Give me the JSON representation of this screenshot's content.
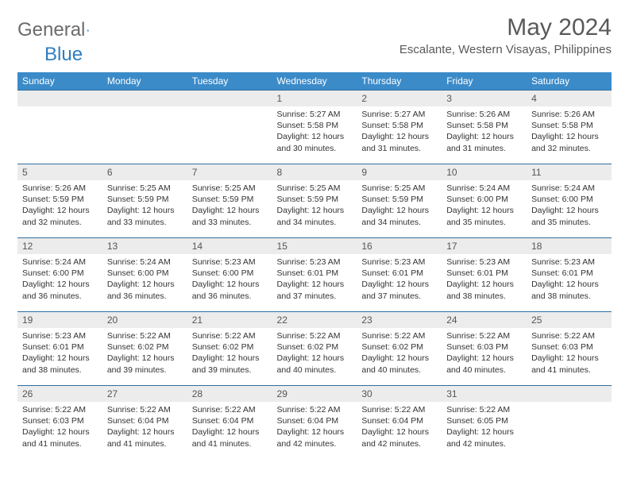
{
  "brand": {
    "gray": "General",
    "blue": "Blue"
  },
  "title": "May 2024",
  "location": "Escalante, Western Visayas, Philippines",
  "colors": {
    "header_bg": "#3b8bc9",
    "row_divider": "#2f6fa3",
    "daynum_bg": "#ececec",
    "text": "#595959"
  },
  "day_labels": [
    "Sunday",
    "Monday",
    "Tuesday",
    "Wednesday",
    "Thursday",
    "Friday",
    "Saturday"
  ],
  "weeks": [
    [
      {
        "n": "",
        "empty": true
      },
      {
        "n": "",
        "empty": true
      },
      {
        "n": "",
        "empty": true
      },
      {
        "n": "1",
        "sr": "5:27 AM",
        "ss": "5:58 PM",
        "dl": "12 hours and 30 minutes."
      },
      {
        "n": "2",
        "sr": "5:27 AM",
        "ss": "5:58 PM",
        "dl": "12 hours and 31 minutes."
      },
      {
        "n": "3",
        "sr": "5:26 AM",
        "ss": "5:58 PM",
        "dl": "12 hours and 31 minutes."
      },
      {
        "n": "4",
        "sr": "5:26 AM",
        "ss": "5:58 PM",
        "dl": "12 hours and 32 minutes."
      }
    ],
    [
      {
        "n": "5",
        "sr": "5:26 AM",
        "ss": "5:59 PM",
        "dl": "12 hours and 32 minutes."
      },
      {
        "n": "6",
        "sr": "5:25 AM",
        "ss": "5:59 PM",
        "dl": "12 hours and 33 minutes."
      },
      {
        "n": "7",
        "sr": "5:25 AM",
        "ss": "5:59 PM",
        "dl": "12 hours and 33 minutes."
      },
      {
        "n": "8",
        "sr": "5:25 AM",
        "ss": "5:59 PM",
        "dl": "12 hours and 34 minutes."
      },
      {
        "n": "9",
        "sr": "5:25 AM",
        "ss": "5:59 PM",
        "dl": "12 hours and 34 minutes."
      },
      {
        "n": "10",
        "sr": "5:24 AM",
        "ss": "6:00 PM",
        "dl": "12 hours and 35 minutes."
      },
      {
        "n": "11",
        "sr": "5:24 AM",
        "ss": "6:00 PM",
        "dl": "12 hours and 35 minutes."
      }
    ],
    [
      {
        "n": "12",
        "sr": "5:24 AM",
        "ss": "6:00 PM",
        "dl": "12 hours and 36 minutes."
      },
      {
        "n": "13",
        "sr": "5:24 AM",
        "ss": "6:00 PM",
        "dl": "12 hours and 36 minutes."
      },
      {
        "n": "14",
        "sr": "5:23 AM",
        "ss": "6:00 PM",
        "dl": "12 hours and 36 minutes."
      },
      {
        "n": "15",
        "sr": "5:23 AM",
        "ss": "6:01 PM",
        "dl": "12 hours and 37 minutes."
      },
      {
        "n": "16",
        "sr": "5:23 AM",
        "ss": "6:01 PM",
        "dl": "12 hours and 37 minutes."
      },
      {
        "n": "17",
        "sr": "5:23 AM",
        "ss": "6:01 PM",
        "dl": "12 hours and 38 minutes."
      },
      {
        "n": "18",
        "sr": "5:23 AM",
        "ss": "6:01 PM",
        "dl": "12 hours and 38 minutes."
      }
    ],
    [
      {
        "n": "19",
        "sr": "5:23 AM",
        "ss": "6:01 PM",
        "dl": "12 hours and 38 minutes."
      },
      {
        "n": "20",
        "sr": "5:22 AM",
        "ss": "6:02 PM",
        "dl": "12 hours and 39 minutes."
      },
      {
        "n": "21",
        "sr": "5:22 AM",
        "ss": "6:02 PM",
        "dl": "12 hours and 39 minutes."
      },
      {
        "n": "22",
        "sr": "5:22 AM",
        "ss": "6:02 PM",
        "dl": "12 hours and 40 minutes."
      },
      {
        "n": "23",
        "sr": "5:22 AM",
        "ss": "6:02 PM",
        "dl": "12 hours and 40 minutes."
      },
      {
        "n": "24",
        "sr": "5:22 AM",
        "ss": "6:03 PM",
        "dl": "12 hours and 40 minutes."
      },
      {
        "n": "25",
        "sr": "5:22 AM",
        "ss": "6:03 PM",
        "dl": "12 hours and 41 minutes."
      }
    ],
    [
      {
        "n": "26",
        "sr": "5:22 AM",
        "ss": "6:03 PM",
        "dl": "12 hours and 41 minutes."
      },
      {
        "n": "27",
        "sr": "5:22 AM",
        "ss": "6:04 PM",
        "dl": "12 hours and 41 minutes."
      },
      {
        "n": "28",
        "sr": "5:22 AM",
        "ss": "6:04 PM",
        "dl": "12 hours and 41 minutes."
      },
      {
        "n": "29",
        "sr": "5:22 AM",
        "ss": "6:04 PM",
        "dl": "12 hours and 42 minutes."
      },
      {
        "n": "30",
        "sr": "5:22 AM",
        "ss": "6:04 PM",
        "dl": "12 hours and 42 minutes."
      },
      {
        "n": "31",
        "sr": "5:22 AM",
        "ss": "6:05 PM",
        "dl": "12 hours and 42 minutes."
      },
      {
        "n": "",
        "empty": true
      }
    ]
  ],
  "labels": {
    "sunrise": "Sunrise: ",
    "sunset": "Sunset: ",
    "daylight": "Daylight: "
  }
}
